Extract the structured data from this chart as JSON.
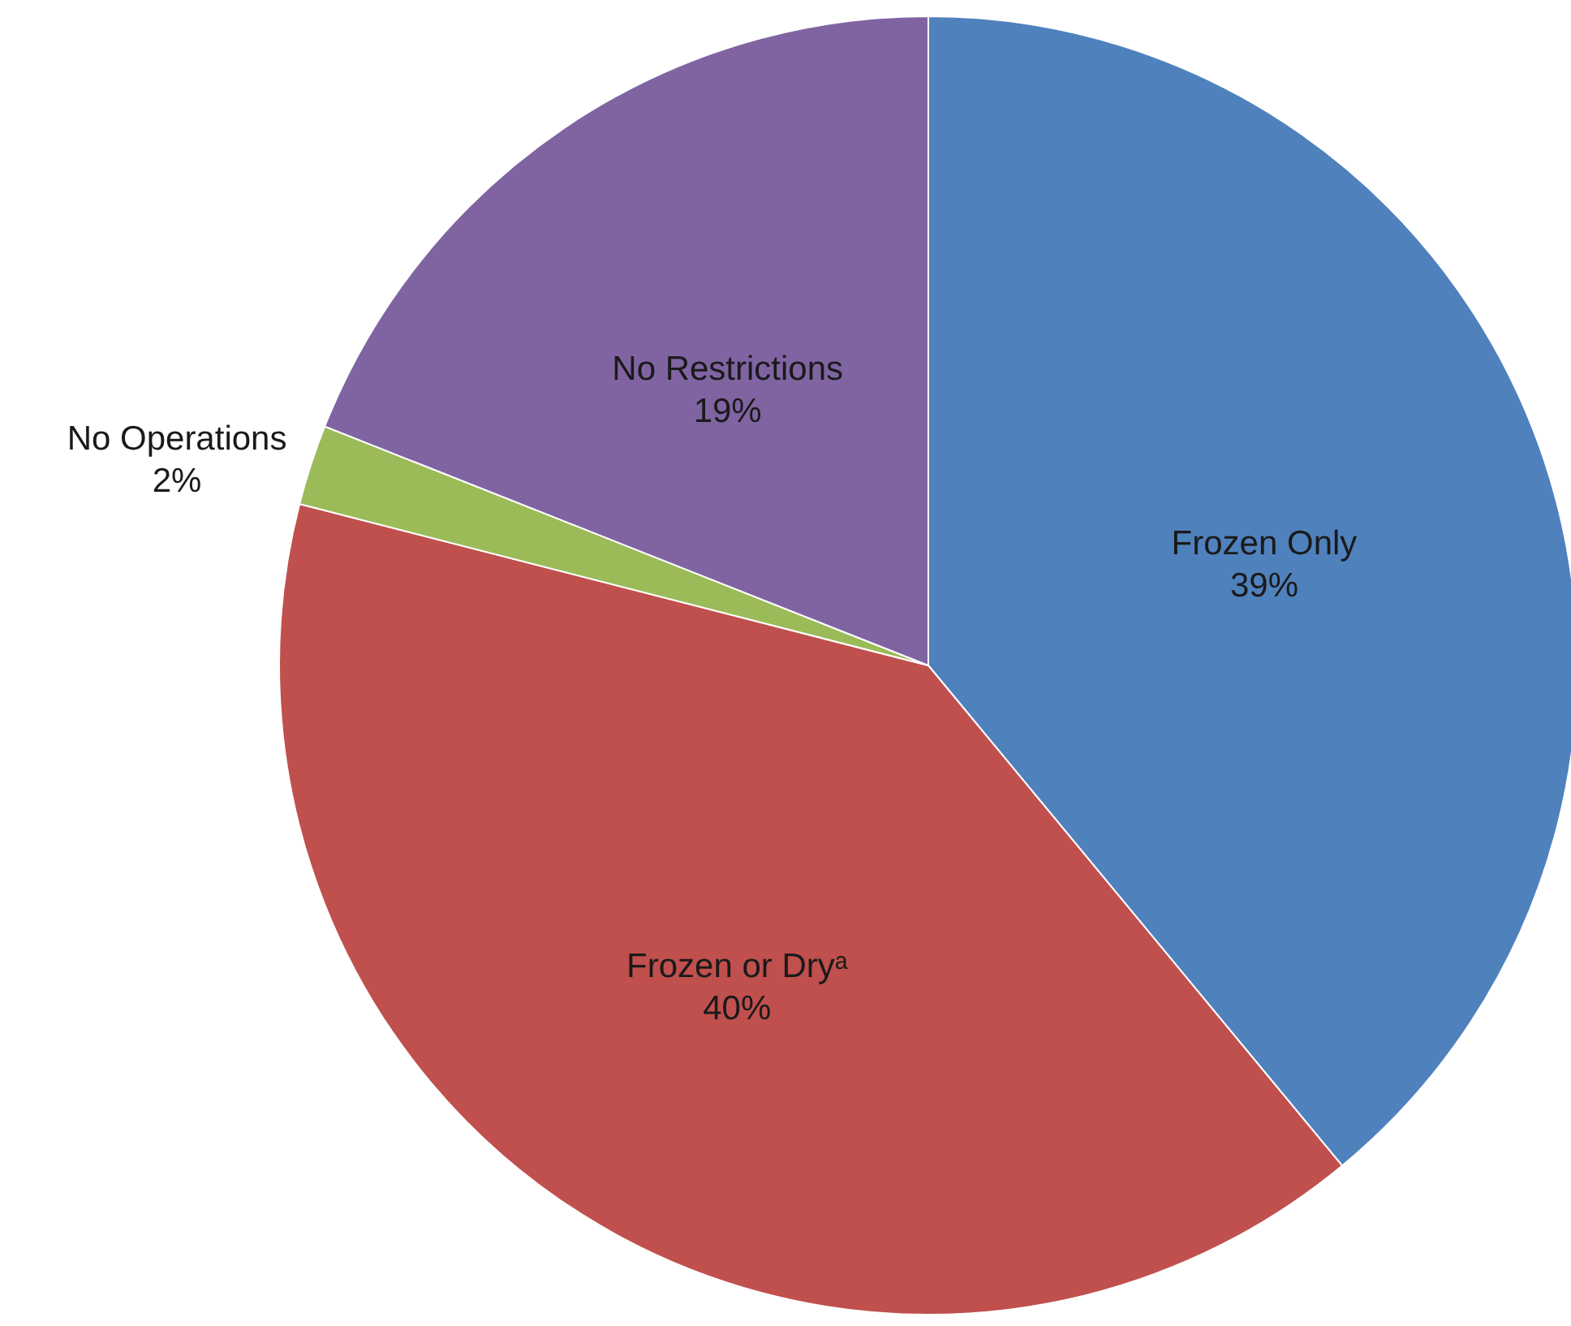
{
  "chart_data": {
    "type": "pie",
    "categories": [
      "Frozen Only",
      "Frozen or Dryᵃ",
      "No Operations",
      "No Restrictions"
    ],
    "values": [
      39,
      40,
      2,
      19
    ],
    "value_labels": [
      "39%",
      "40%",
      "2%",
      "19%"
    ],
    "colors": [
      "#4f81bd",
      "#c0504d",
      "#9bbb59",
      "#8064a2"
    ]
  }
}
